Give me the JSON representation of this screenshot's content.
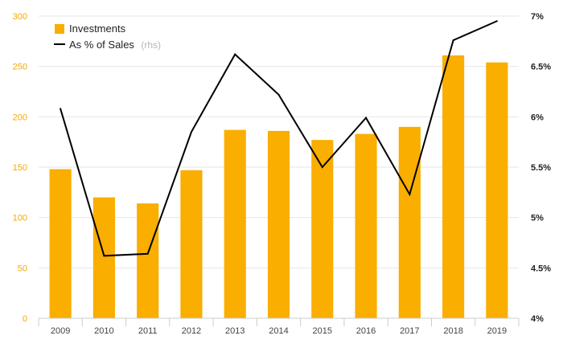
{
  "chart_data": {
    "type": "bar",
    "categories": [
      "2009",
      "2010",
      "2011",
      "2012",
      "2013",
      "2014",
      "2015",
      "2016",
      "2017",
      "2018",
      "2019"
    ],
    "series": [
      {
        "name": "Investments",
        "type": "bar",
        "axis": "left",
        "values": [
          148,
          120,
          114,
          147,
          187,
          186,
          177,
          183,
          190,
          261,
          254
        ]
      },
      {
        "name": "As % of Sales",
        "type": "line",
        "axis": "right",
        "values": [
          6.08,
          4.62,
          4.64,
          5.85,
          6.62,
          6.22,
          5.5,
          5.99,
          5.23,
          6.76,
          6.95
        ]
      }
    ],
    "legend": {
      "items": [
        {
          "label": "Investments",
          "note": ""
        },
        {
          "label": "As % of Sales",
          "note": "(rhs)"
        }
      ],
      "position": "top-left"
    },
    "y_left": {
      "min": 0,
      "max": 300,
      "ticks": [
        "0",
        "50",
        "100",
        "150",
        "200",
        "250",
        "300"
      ]
    },
    "y_right": {
      "min": 4,
      "max": 7,
      "ticks": [
        "4%",
        "4.5%",
        "5%",
        "5.5%",
        "6%",
        "6.5%",
        "7%"
      ]
    },
    "grid": true,
    "colors": {
      "bar": "#f9ae00",
      "line": "#000000",
      "grid": "#e6e6e6",
      "left_ticks": "#f5a800"
    }
  }
}
